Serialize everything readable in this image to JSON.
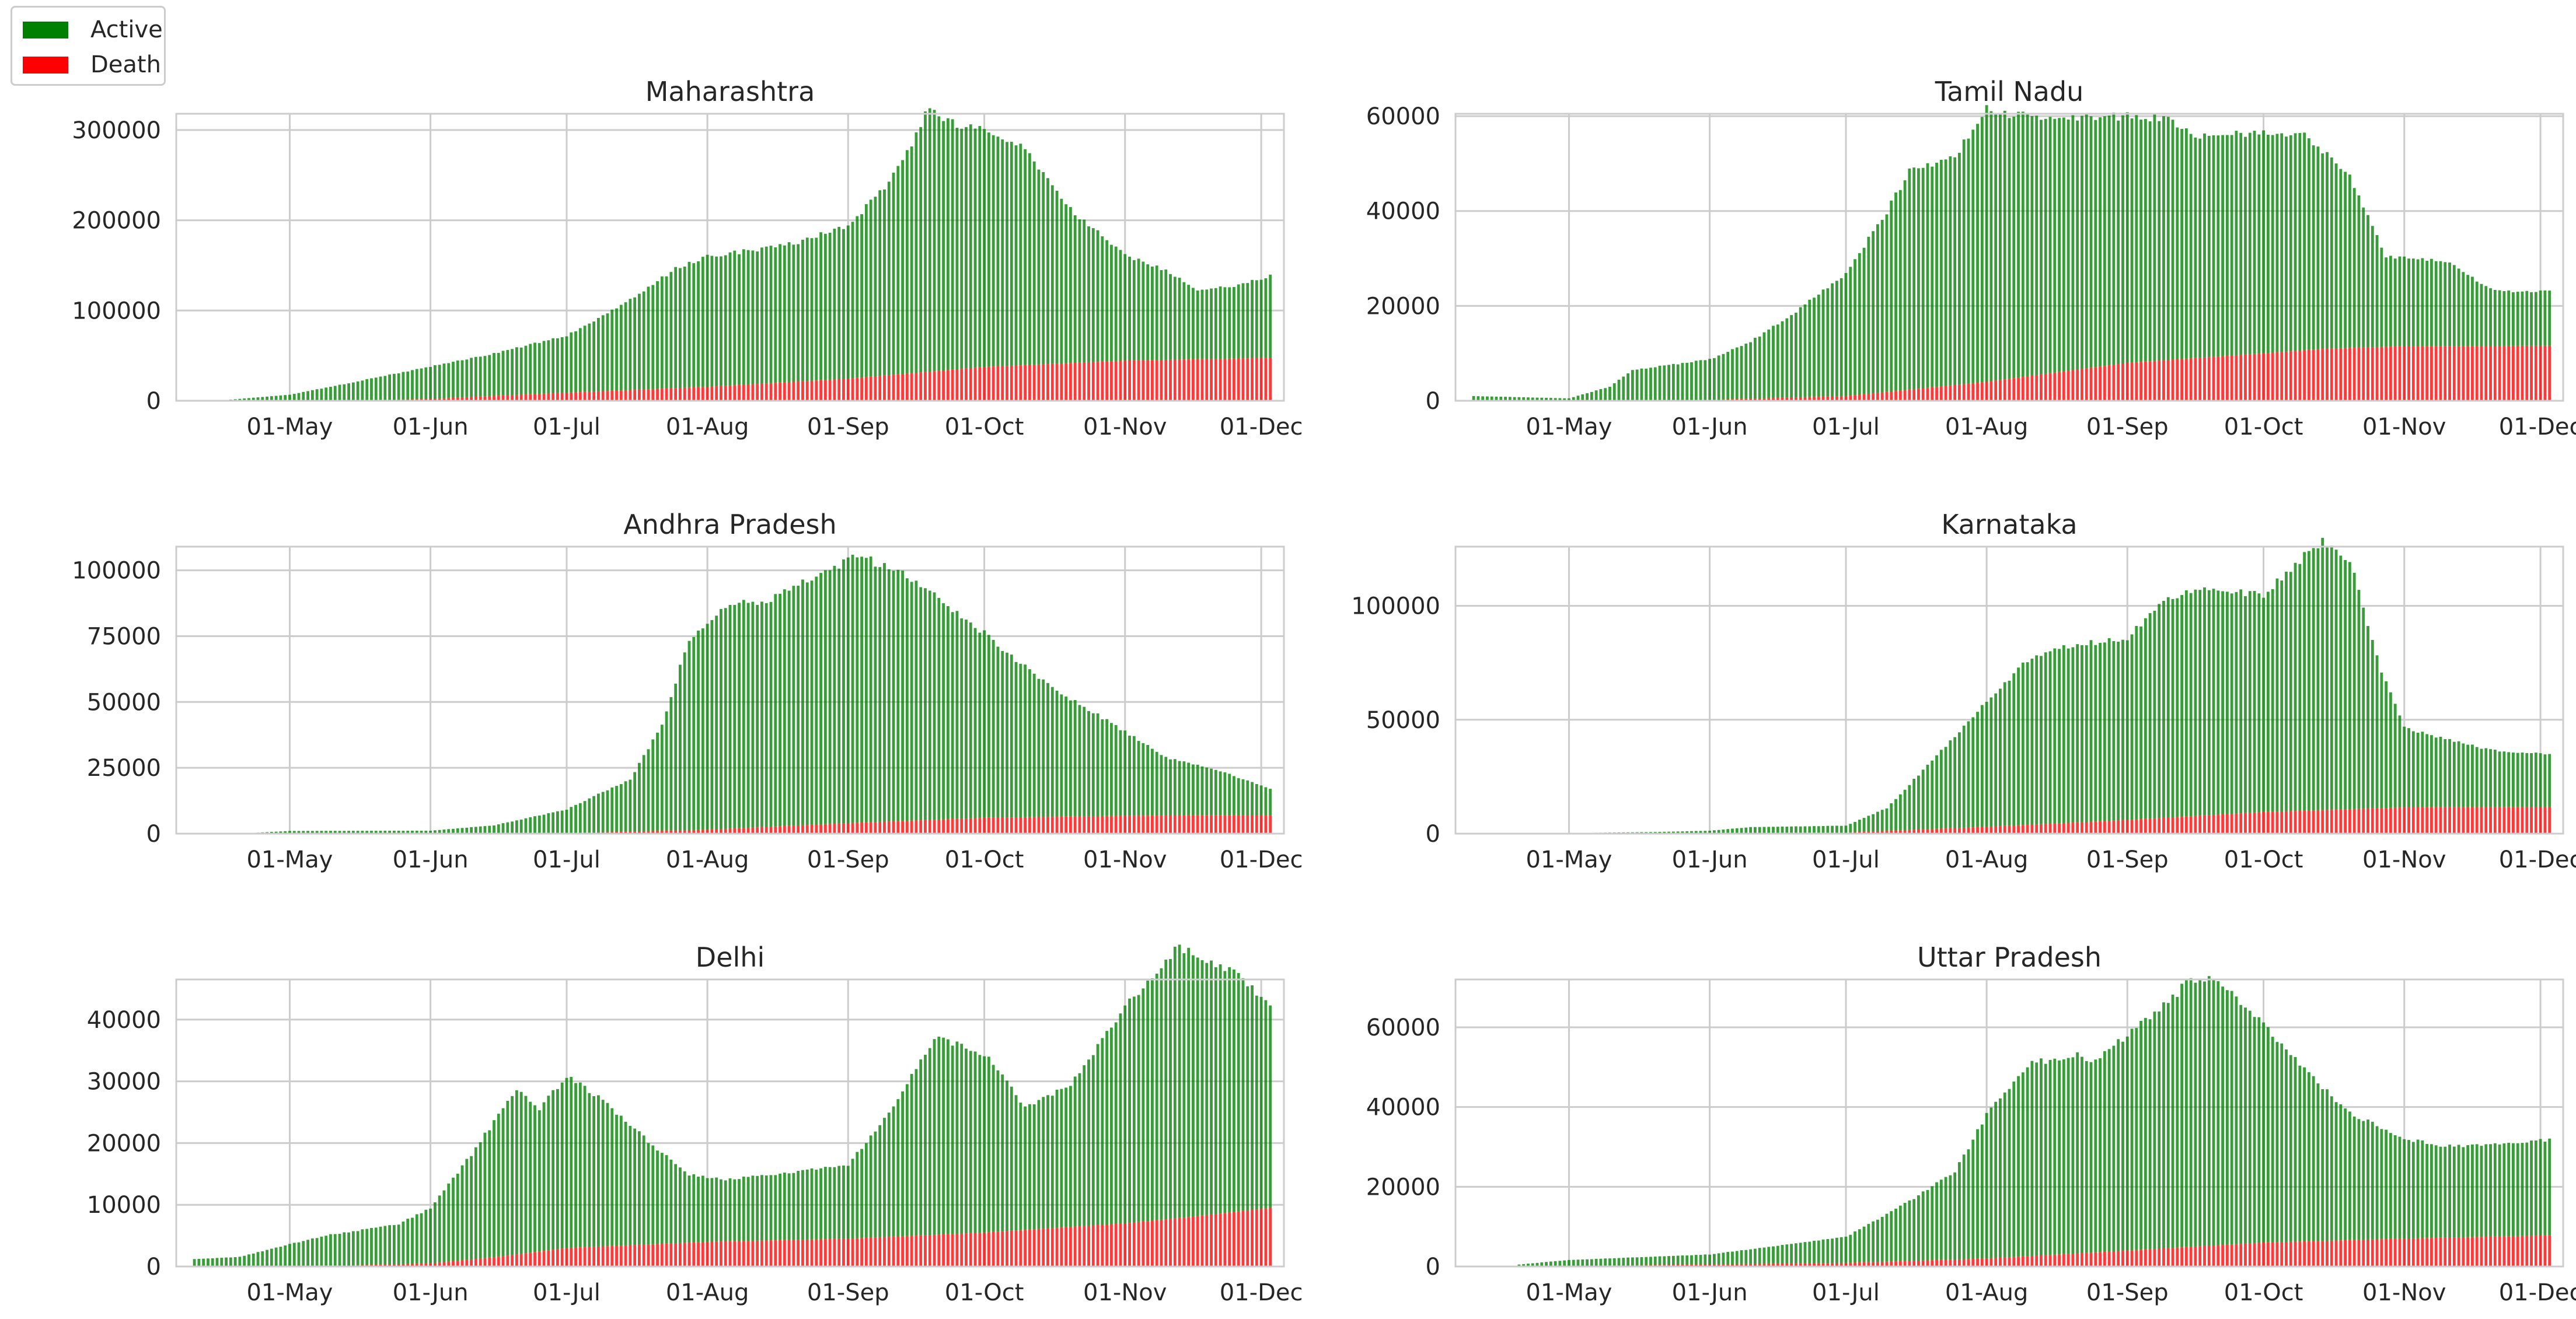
{
  "legend": {
    "placement": "upper-left",
    "entries": [
      {
        "label": "Active",
        "color": "#008000"
      },
      {
        "label": "Death",
        "color": "#ff0000"
      }
    ]
  },
  "colors": {
    "active": "#008000",
    "death": "#ff0000",
    "grid": "#cccccc",
    "text": "#262626"
  },
  "chart_data": [
    {
      "type": "bar",
      "stacked": true,
      "title": "Maharashtra",
      "xlabel": "",
      "ylabel": "",
      "x_ticks": [
        "01-May",
        "01-Jun",
        "01-Jul",
        "01-Aug",
        "01-Sep",
        "01-Oct",
        "01-Nov",
        "01-Dec"
      ],
      "y_ticks": [
        "0",
        "100000",
        "200000",
        "300000"
      ],
      "ylim": [
        0,
        318000
      ],
      "x_range": [
        "2020-04-06",
        "2020-12-06"
      ],
      "grid": true,
      "series": [
        {
          "name": "Active",
          "points": [
            [
              "04-15",
              0
            ],
            [
              "05-01",
              6500
            ],
            [
              "05-15",
              20000
            ],
            [
              "06-01",
              36000
            ],
            [
              "06-15",
              47000
            ],
            [
              "07-01",
              63000
            ],
            [
              "07-15",
              100000
            ],
            [
              "07-25",
              132000
            ],
            [
              "08-01",
              145000
            ],
            [
              "08-10",
              148000
            ],
            [
              "08-20",
              153000
            ],
            [
              "09-01",
              170000
            ],
            [
              "09-10",
              212000
            ],
            [
              "09-15",
              255000
            ],
            [
              "09-19",
              295000
            ],
            [
              "09-22",
              280000
            ],
            [
              "09-25",
              270000
            ],
            [
              "10-01",
              262000
            ],
            [
              "10-10",
              240000
            ],
            [
              "10-20",
              170000
            ],
            [
              "11-01",
              117000
            ],
            [
              "11-10",
              99000
            ],
            [
              "11-17",
              77000
            ],
            [
              "11-25",
              80000
            ],
            [
              "12-03",
              91000
            ]
          ]
        },
        {
          "name": "Death",
          "points": [
            [
              "04-15",
              0
            ],
            [
              "05-15",
              500
            ],
            [
              "06-01",
              2000
            ],
            [
              "06-15",
              5500
            ],
            [
              "07-01",
              9000
            ],
            [
              "08-01",
              15500
            ],
            [
              "09-01",
              24500
            ],
            [
              "10-01",
              37500
            ],
            [
              "11-01",
              44500
            ],
            [
              "12-03",
              47500
            ]
          ]
        }
      ]
    },
    {
      "type": "bar",
      "stacked": true,
      "title": "Tamil Nadu",
      "xlabel": "",
      "ylabel": "",
      "x_ticks": [
        "01-May",
        "01-Jun",
        "01-Jul",
        "01-Aug",
        "01-Sep",
        "01-Oct",
        "01-Nov",
        "01-Dec"
      ],
      "y_ticks": [
        "0",
        "20000",
        "40000",
        "60000"
      ],
      "ylim": [
        0,
        60500
      ],
      "x_range": [
        "2020-04-06",
        "2020-12-06"
      ],
      "grid": true,
      "series": [
        {
          "name": "Active",
          "points": [
            [
              "04-10",
              1000
            ],
            [
              "05-01",
              500
            ],
            [
              "05-10",
              3000
            ],
            [
              "05-15",
              6500
            ],
            [
              "06-01",
              8500
            ],
            [
              "06-10",
              12000
            ],
            [
              "06-20",
              18000
            ],
            [
              "07-01",
              26000
            ],
            [
              "07-10",
              38000
            ],
            [
              "07-15",
              46000
            ],
            [
              "07-25",
              48000
            ],
            [
              "08-01",
              57500
            ],
            [
              "08-05",
              56000
            ],
            [
              "08-15",
              54000
            ],
            [
              "09-01",
              52000
            ],
            [
              "09-10",
              51000
            ],
            [
              "09-15",
              47000
            ],
            [
              "10-01",
              46500
            ],
            [
              "10-10",
              45500
            ],
            [
              "10-20",
              36000
            ],
            [
              "10-28",
              19000
            ],
            [
              "11-10",
              18000
            ],
            [
              "11-20",
              12000
            ],
            [
              "11-25",
              11500
            ],
            [
              "12-03",
              11500
            ]
          ]
        },
        {
          "name": "Death",
          "points": [
            [
              "04-10",
              0
            ],
            [
              "05-15",
              0
            ],
            [
              "06-01",
              200
            ],
            [
              "07-01",
              1000
            ],
            [
              "08-01",
              4000
            ],
            [
              "09-01",
              8000
            ],
            [
              "10-01",
              10000
            ],
            [
              "10-15",
              11000
            ],
            [
              "11-01",
              11500
            ],
            [
              "12-03",
              11600
            ]
          ]
        }
      ]
    },
    {
      "type": "bar",
      "stacked": true,
      "title": "Andhra Pradesh",
      "xlabel": "",
      "ylabel": "",
      "x_ticks": [
        "01-May",
        "01-Jun",
        "01-Jul",
        "01-Aug",
        "01-Sep",
        "01-Oct",
        "01-Nov",
        "01-Dec"
      ],
      "y_ticks": [
        "0",
        "25000",
        "50000",
        "75000",
        "100000"
      ],
      "ylim": [
        0,
        109000
      ],
      "x_range": [
        "2020-04-06",
        "2020-12-06"
      ],
      "grid": true,
      "series": [
        {
          "name": "Active",
          "points": [
            [
              "04-20",
              0
            ],
            [
              "05-01",
              1000
            ],
            [
              "06-01",
              1000
            ],
            [
              "06-15",
              3000
            ],
            [
              "07-01",
              9000
            ],
            [
              "07-15",
              20000
            ],
            [
              "07-22",
              40000
            ],
            [
              "07-28",
              73000
            ],
            [
              "08-05",
              85000
            ],
            [
              "08-15",
              86000
            ],
            [
              "09-01",
              100000
            ],
            [
              "09-03",
              102000
            ],
            [
              "09-15",
              92000
            ],
            [
              "10-01",
              70000
            ],
            [
              "10-15",
              50000
            ],
            [
              "11-01",
              32000
            ],
            [
              "11-10",
              22000
            ],
            [
              "11-20",
              18000
            ],
            [
              "12-03",
              10000
            ]
          ]
        },
        {
          "name": "Death",
          "points": [
            [
              "04-20",
              0
            ],
            [
              "07-01",
              200
            ],
            [
              "07-20",
              1000
            ],
            [
              "08-01",
              1500
            ],
            [
              "09-01",
              4000
            ],
            [
              "10-01",
              6000
            ],
            [
              "11-01",
              6800
            ],
            [
              "12-03",
              7000
            ]
          ]
        }
      ]
    },
    {
      "type": "bar",
      "stacked": true,
      "title": "Karnataka",
      "xlabel": "",
      "ylabel": "",
      "x_ticks": [
        "01-May",
        "01-Jun",
        "01-Jul",
        "01-Aug",
        "01-Sep",
        "01-Oct",
        "01-Nov",
        "01-Dec"
      ],
      "y_ticks": [
        "0",
        "50000",
        "100000"
      ],
      "ylim": [
        0,
        126000
      ],
      "x_range": [
        "2020-04-06",
        "2020-12-06"
      ],
      "grid": true,
      "series": [
        {
          "name": "Active",
          "points": [
            [
              "04-20",
              0
            ],
            [
              "05-20",
              500
            ],
            [
              "06-01",
              1000
            ],
            [
              "06-10",
              2500
            ],
            [
              "07-01",
              3000
            ],
            [
              "07-10",
              10000
            ],
            [
              "07-20",
              30000
            ],
            [
              "08-01",
              55000
            ],
            [
              "08-10",
              72000
            ],
            [
              "08-20",
              78000
            ],
            [
              "09-01",
              80000
            ],
            [
              "09-10",
              97000
            ],
            [
              "09-20",
              100000
            ],
            [
              "10-01",
              95000
            ],
            [
              "10-10",
              112000
            ],
            [
              "10-14",
              118000
            ],
            [
              "10-20",
              110000
            ],
            [
              "10-27",
              60000
            ],
            [
              "11-01",
              35000
            ],
            [
              "11-10",
              30000
            ],
            [
              "11-20",
              25000
            ],
            [
              "12-03",
              23000
            ]
          ]
        },
        {
          "name": "Death",
          "points": [
            [
              "04-20",
              0
            ],
            [
              "07-01",
              500
            ],
            [
              "08-01",
              3000
            ],
            [
              "09-01",
              6000
            ],
            [
              "10-01",
              9500
            ],
            [
              "11-01",
              11500
            ],
            [
              "12-03",
              11800
            ]
          ]
        }
      ]
    },
    {
      "type": "bar",
      "stacked": true,
      "title": "Delhi",
      "xlabel": "",
      "ylabel": "",
      "x_ticks": [
        "01-May",
        "01-Jun",
        "01-Jul",
        "01-Aug",
        "01-Sep",
        "01-Oct",
        "01-Nov",
        "01-Dec"
      ],
      "y_ticks": [
        "0",
        "10000",
        "20000",
        "30000",
        "40000"
      ],
      "ylim": [
        0,
        46500
      ],
      "x_range": [
        "2020-04-06",
        "2020-12-06"
      ],
      "grid": true,
      "series": [
        {
          "name": "Active",
          "points": [
            [
              "04-10",
              1200
            ],
            [
              "04-20",
              1500
            ],
            [
              "05-01",
              3500
            ],
            [
              "05-10",
              5000
            ],
            [
              "05-25",
              6500
            ],
            [
              "06-01",
              9000
            ],
            [
              "06-10",
              17000
            ],
            [
              "06-20",
              27000
            ],
            [
              "06-25",
              23000
            ],
            [
              "07-01",
              28000
            ],
            [
              "07-10",
              23000
            ],
            [
              "07-20",
              16000
            ],
            [
              "07-28",
              11000
            ],
            [
              "08-05",
              10000
            ],
            [
              "08-20",
              11000
            ],
            [
              "09-01",
              12000
            ],
            [
              "09-10",
              20000
            ],
            [
              "09-20",
              32000
            ],
            [
              "10-01",
              29000
            ],
            [
              "10-10",
              20000
            ],
            [
              "10-20",
              23000
            ],
            [
              "11-01",
              35000
            ],
            [
              "11-10",
              42000
            ],
            [
              "11-13",
              44000
            ],
            [
              "11-20",
              41000
            ],
            [
              "11-25",
              39000
            ],
            [
              "12-03",
              33000
            ]
          ]
        },
        {
          "name": "Death",
          "points": [
            [
              "04-10",
              0
            ],
            [
              "05-15",
              200
            ],
            [
              "06-01",
              500
            ],
            [
              "06-15",
              1500
            ],
            [
              "07-01",
              3000
            ],
            [
              "08-01",
              4000
            ],
            [
              "09-01",
              4500
            ],
            [
              "10-01",
              5500
            ],
            [
              "11-01",
              7000
            ],
            [
              "11-15",
              8000
            ],
            [
              "12-03",
              9500
            ]
          ]
        }
      ]
    },
    {
      "type": "bar",
      "stacked": true,
      "title": "Uttar Pradesh",
      "xlabel": "",
      "ylabel": "",
      "x_ticks": [
        "01-May",
        "01-Jun",
        "01-Jul",
        "01-Aug",
        "01-Sep",
        "01-Oct",
        "01-Nov",
        "01-Dec"
      ],
      "y_ticks": [
        "0",
        "20000",
        "40000",
        "60000"
      ],
      "ylim": [
        0,
        72000
      ],
      "x_range": [
        "2020-04-06",
        "2020-12-06"
      ],
      "grid": true,
      "series": [
        {
          "name": "Active",
          "points": [
            [
              "04-20",
              500
            ],
            [
              "05-01",
              1500
            ],
            [
              "06-01",
              2500
            ],
            [
              "07-01",
              6500
            ],
            [
              "07-15",
              15000
            ],
            [
              "07-25",
              22000
            ],
            [
              "08-01",
              36000
            ],
            [
              "08-10",
              48000
            ],
            [
              "08-20",
              50000
            ],
            [
              "08-25",
              48000
            ],
            [
              "09-01",
              54000
            ],
            [
              "09-10",
              62000
            ],
            [
              "09-15",
              67000
            ],
            [
              "09-20",
              67000
            ],
            [
              "10-01",
              55000
            ],
            [
              "10-10",
              43000
            ],
            [
              "10-20",
              32000
            ],
            [
              "11-01",
              25000
            ],
            [
              "11-10",
              23000
            ],
            [
              "11-20",
              23000
            ],
            [
              "12-03",
              24000
            ]
          ]
        },
        {
          "name": "Death",
          "points": [
            [
              "04-20",
              0
            ],
            [
              "07-01",
              900
            ],
            [
              "08-01",
              2000
            ],
            [
              "09-01",
              4000
            ],
            [
              "10-01",
              6000
            ],
            [
              "11-01",
              7000
            ],
            [
              "12-03",
              7800
            ]
          ]
        }
      ]
    }
  ]
}
